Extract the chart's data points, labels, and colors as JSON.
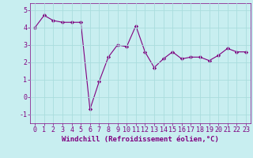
{
  "x": [
    0,
    1,
    2,
    3,
    4,
    5,
    6,
    7,
    8,
    9,
    10,
    11,
    12,
    13,
    14,
    15,
    16,
    17,
    18,
    19,
    20,
    21,
    22,
    23
  ],
  "y": [
    4.0,
    4.7,
    4.4,
    4.3,
    4.3,
    4.3,
    -0.7,
    0.9,
    2.3,
    3.0,
    2.9,
    4.1,
    2.6,
    1.7,
    2.2,
    2.6,
    2.2,
    2.3,
    2.3,
    2.1,
    2.4,
    2.8,
    2.6,
    2.6
  ],
  "line_color": "#800080",
  "marker": "D",
  "marker_size": 2.2,
  "background_color": "#c8eef0",
  "grid_color": "#aadddd",
  "xlabel": "Windchill (Refroidissement éolien,°C)",
  "ylim": [
    -1.5,
    5.4
  ],
  "xlim": [
    -0.5,
    23.5
  ],
  "yticks": [
    -1,
    0,
    1,
    2,
    3,
    4,
    5
  ],
  "xticks": [
    0,
    1,
    2,
    3,
    4,
    5,
    6,
    7,
    8,
    9,
    10,
    11,
    12,
    13,
    14,
    15,
    16,
    17,
    18,
    19,
    20,
    21,
    22,
    23
  ],
  "tick_color": "#800080",
  "label_color": "#800080",
  "font_family": "monospace",
  "xlabel_fontsize": 6.5,
  "tick_fontsize": 6.0,
  "linewidth": 0.8
}
